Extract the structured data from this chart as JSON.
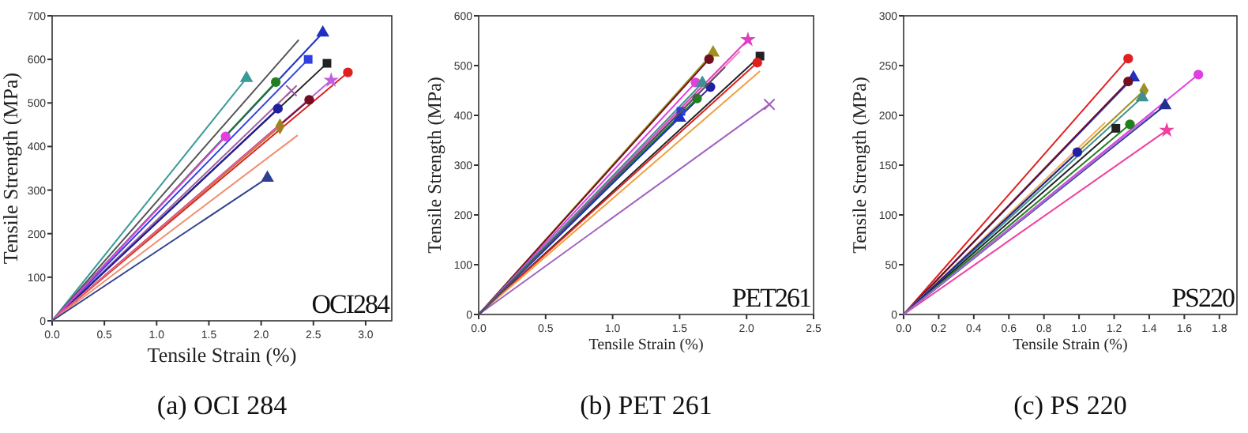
{
  "chart_data": [
    {
      "type": "line",
      "title": "(a) OCI 284",
      "xlabel": "Tensile Strain (%)",
      "ylabel": "Tensile Strength (MPa)",
      "annotations": [
        "OCI284"
      ],
      "xlim": [
        0,
        3.25
      ],
      "ylim": [
        0,
        700
      ],
      "xticks": [
        {
          "value": 0,
          "label": "0.0"
        },
        {
          "value": 0.5,
          "label": "0.5"
        },
        {
          "value": 1,
          "label": "1.0"
        },
        {
          "value": 1.5,
          "label": "1.5"
        },
        {
          "value": 2,
          "label": "2.0"
        },
        {
          "value": 2.5,
          "label": "2.5"
        },
        {
          "value": 3,
          "label": "3.0"
        }
      ],
      "yticks": [
        0,
        100,
        200,
        300,
        400,
        500,
        600,
        700
      ],
      "grid": false,
      "line_style": "solid",
      "series": [
        {
          "color": "#3a9a9a",
          "marker": "triangle",
          "x": [
            0,
            1.86
          ],
          "values": [
            0,
            557
          ]
        },
        {
          "color": "#555555",
          "marker": "none",
          "x": [
            0,
            2.36
          ],
          "values": [
            0,
            645
          ]
        },
        {
          "color": "#2030c0",
          "marker": "triangle",
          "x": [
            0,
            2.59
          ],
          "values": [
            0,
            661
          ]
        },
        {
          "color": "#3040e0",
          "marker": "square",
          "x": [
            0,
            2.45
          ],
          "values": [
            0,
            600
          ]
        },
        {
          "color": "#222222",
          "marker": "square",
          "x": [
            0,
            2.63
          ],
          "values": [
            0,
            591
          ]
        },
        {
          "color": "#208020",
          "marker": "circle",
          "x": [
            0,
            2.14
          ],
          "values": [
            0,
            548
          ]
        },
        {
          "color": "#e02020",
          "marker": "circle",
          "x": [
            0,
            2.83
          ],
          "values": [
            0,
            570
          ]
        },
        {
          "color": "#c060e0",
          "marker": "star",
          "x": [
            0,
            2.67
          ],
          "values": [
            0,
            552
          ]
        },
        {
          "color": "#a060a0",
          "marker": "cross",
          "x": [
            0,
            2.29
          ],
          "values": [
            0,
            528
          ]
        },
        {
          "color": "#701020",
          "marker": "circle",
          "x": [
            0,
            2.46
          ],
          "values": [
            0,
            507
          ]
        },
        {
          "color": "#2020a0",
          "marker": "circle",
          "x": [
            0,
            2.16
          ],
          "values": [
            0,
            487
          ]
        },
        {
          "color": "#e040e0",
          "marker": "circle",
          "x": [
            0,
            1.66
          ],
          "values": [
            0,
            423
          ]
        },
        {
          "color": "#a08020",
          "marker": "diamond",
          "x": [
            0,
            2.18
          ],
          "values": [
            0,
            446
          ]
        },
        {
          "color": "#f06080",
          "marker": "none",
          "x": [
            0,
            2.15
          ],
          "values": [
            0,
            443
          ]
        },
        {
          "color": "#f09070",
          "marker": "none",
          "x": [
            0,
            2.35
          ],
          "values": [
            0,
            426
          ]
        },
        {
          "color": "#304090",
          "marker": "triangle",
          "x": [
            0,
            2.06
          ],
          "values": [
            0,
            328
          ]
        }
      ]
    },
    {
      "type": "line",
      "title": "(b) PET 261",
      "xlabel": "Tensile Strain (%)",
      "ylabel": "Tensile Strength (MPa)",
      "annotations": [
        "PET261"
      ],
      "xlim": [
        0,
        2.5
      ],
      "ylim": [
        0,
        600
      ],
      "xticks": [
        {
          "value": 0,
          "label": "0.0"
        },
        {
          "value": 0.5,
          "label": "0.5"
        },
        {
          "value": 1,
          "label": "1.0"
        },
        {
          "value": 1.5,
          "label": "1.5"
        },
        {
          "value": 2,
          "label": "2.0"
        },
        {
          "value": 2.5,
          "label": "2.5"
        }
      ],
      "yticks": [
        0,
        100,
        200,
        300,
        400,
        500,
        600
      ],
      "grid": false,
      "line_style": "solid",
      "series": [
        {
          "color": "#a09020",
          "marker": "triangle",
          "x": [
            0,
            1.75
          ],
          "values": [
            0,
            526
          ]
        },
        {
          "color": "#701020",
          "marker": "circle",
          "x": [
            0,
            1.72
          ],
          "values": [
            0,
            513
          ]
        },
        {
          "color": "#e040c0",
          "marker": "star",
          "x": [
            0,
            2.01
          ],
          "values": [
            0,
            552
          ]
        },
        {
          "color": "#f080c0",
          "marker": "none",
          "x": [
            0,
            1.95
          ],
          "values": [
            0,
            529
          ]
        },
        {
          "color": "#222222",
          "marker": "square",
          "x": [
            0,
            2.1
          ],
          "values": [
            0,
            519
          ]
        },
        {
          "color": "#e02020",
          "marker": "circle",
          "x": [
            0,
            2.08
          ],
          "values": [
            0,
            506
          ]
        },
        {
          "color": "#f0a040",
          "marker": "none",
          "x": [
            0,
            2.1
          ],
          "values": [
            0,
            489
          ]
        },
        {
          "color": "#a060c0",
          "marker": "cross",
          "x": [
            0,
            2.17
          ],
          "values": [
            0,
            422
          ]
        },
        {
          "color": "#e040e0",
          "marker": "circle",
          "x": [
            0,
            1.62
          ],
          "values": [
            0,
            466
          ]
        },
        {
          "color": "#409090",
          "marker": "triangle",
          "x": [
            0,
            1.67
          ],
          "values": [
            0,
            465
          ]
        },
        {
          "color": "#2020a0",
          "marker": "circle",
          "x": [
            0,
            1.73
          ],
          "values": [
            0,
            457
          ]
        },
        {
          "color": "#208020",
          "marker": "circle",
          "x": [
            0,
            1.63
          ],
          "values": [
            0,
            434
          ]
        },
        {
          "color": "#3040e0",
          "marker": "square",
          "x": [
            0,
            1.51
          ],
          "values": [
            0,
            408
          ]
        },
        {
          "color": "#2030c0",
          "marker": "triangle",
          "x": [
            0,
            1.5
          ],
          "values": [
            0,
            395
          ]
        },
        {
          "color": "#555555",
          "marker": "none",
          "x": [
            0,
            1.84
          ],
          "values": [
            0,
            497
          ]
        }
      ]
    },
    {
      "type": "line",
      "title": "(c) PS 220",
      "xlabel": "Tensile Strain (%)",
      "ylabel": "Tensile Strength (MPa)",
      "annotations": [
        "PS220"
      ],
      "xlim": [
        0,
        1.9
      ],
      "ylim": [
        0,
        300
      ],
      "xticks": [
        {
          "value": 0,
          "label": "0.0"
        },
        {
          "value": 0.2,
          "label": "0.2"
        },
        {
          "value": 0.4,
          "label": "0.4"
        },
        {
          "value": 0.6,
          "label": "0.6"
        },
        {
          "value": 0.8,
          "label": "0.8"
        },
        {
          "value": 1,
          "label": "1.0"
        },
        {
          "value": 1.2,
          "label": "1.2"
        },
        {
          "value": 1.4,
          "label": "1.4"
        },
        {
          "value": 1.6,
          "label": "1.6"
        },
        {
          "value": 1.8,
          "label": "1.8"
        }
      ],
      "yticks": [
        0,
        50,
        100,
        150,
        200,
        250,
        300
      ],
      "grid": false,
      "line_style": "solid",
      "series": [
        {
          "color": "#e02020",
          "marker": "circle",
          "x": [
            0,
            1.28
          ],
          "values": [
            0,
            257
          ]
        },
        {
          "color": "#2030c0",
          "marker": "triangle",
          "x": [
            0,
            1.31
          ],
          "values": [
            0,
            238
          ]
        },
        {
          "color": "#701020",
          "marker": "circle",
          "x": [
            0,
            1.28
          ],
          "values": [
            0,
            234
          ]
        },
        {
          "color": "#a09020",
          "marker": "diamond",
          "x": [
            0,
            1.37
          ],
          "values": [
            0,
            225
          ]
        },
        {
          "color": "#409090",
          "marker": "triangle",
          "x": [
            0,
            1.36
          ],
          "values": [
            0,
            218
          ]
        },
        {
          "color": "#e040e0",
          "marker": "circle",
          "x": [
            0,
            1.68
          ],
          "values": [
            0,
            241
          ]
        },
        {
          "color": "#203090",
          "marker": "triangle",
          "x": [
            0,
            1.49
          ],
          "values": [
            0,
            210
          ]
        },
        {
          "color": "#222222",
          "marker": "square",
          "x": [
            0,
            1.21
          ],
          "values": [
            0,
            187
          ]
        },
        {
          "color": "#208020",
          "marker": "circle",
          "x": [
            0,
            1.29
          ],
          "values": [
            0,
            191
          ]
        },
        {
          "color": "#f0b060",
          "marker": "none",
          "x": [
            0,
            1.15
          ],
          "values": [
            0,
            193
          ]
        },
        {
          "color": "#2020a0",
          "marker": "circle",
          "x": [
            0,
            0.99
          ],
          "values": [
            0,
            163
          ]
        },
        {
          "color": "#f040a0",
          "marker": "star",
          "x": [
            0,
            1.5
          ],
          "values": [
            0,
            185
          ]
        },
        {
          "color": "#a070d0",
          "marker": "none",
          "x": [
            0,
            1.43
          ],
          "values": [
            0,
            203
          ]
        }
      ]
    }
  ]
}
